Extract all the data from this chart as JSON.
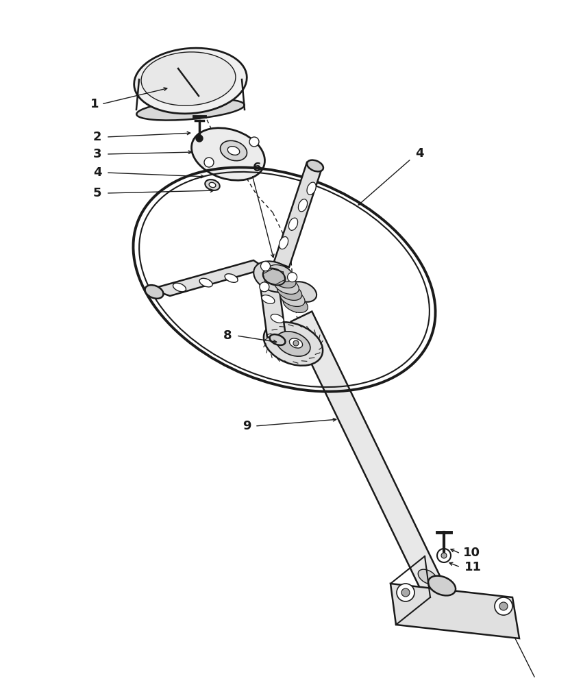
{
  "bg_color": "#ffffff",
  "line_color": "#1a1a1a",
  "fig_width": 8.32,
  "fig_height": 10.0,
  "dpi": 100
}
